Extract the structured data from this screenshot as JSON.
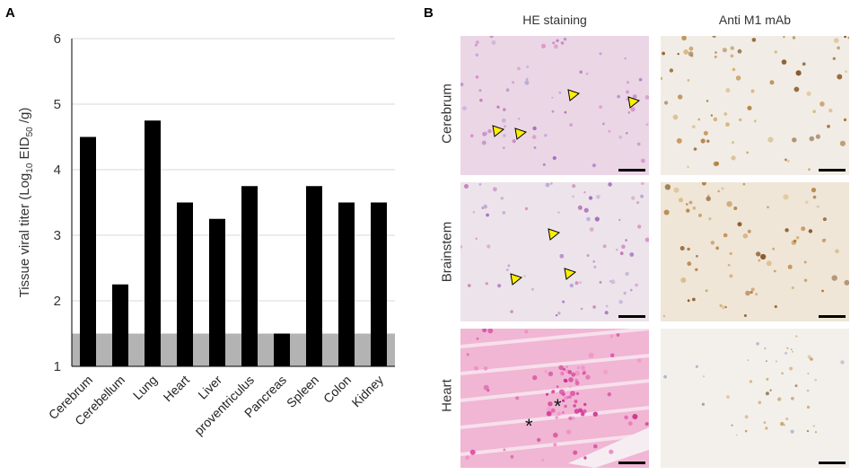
{
  "panel_a": {
    "letter": "A"
  },
  "panel_b": {
    "letter": "B",
    "columns": [
      "HE staining",
      "Anti M1 mAb"
    ],
    "rows": [
      "Cerebrum",
      "Brainstem",
      "Heart"
    ]
  },
  "chart_data": {
    "type": "bar",
    "categories": [
      "Cerebrum",
      "Cerebellum",
      "Lung",
      "Heart",
      "Liver",
      "proventriculus",
      "Pancreas",
      "Spleen",
      "Colon",
      "Kidney"
    ],
    "values": [
      4.5,
      2.25,
      4.75,
      3.5,
      3.25,
      3.75,
      1.5,
      3.75,
      3.5,
      3.5
    ],
    "ylabel": {
      "main": "Tissue viral titer (Log",
      "sub1": "10",
      "mid": " EID",
      "sub2": "50",
      "end": " /g)"
    },
    "ylim": [
      1,
      6
    ],
    "yticks": [
      "1",
      "2",
      "3",
      "4",
      "5",
      "6"
    ],
    "detection_limit": 1.5,
    "grid": true,
    "colors": {
      "bar": "#000000",
      "detection_band": "#b3b3b3",
      "grid": "#d9d9d9"
    }
  }
}
